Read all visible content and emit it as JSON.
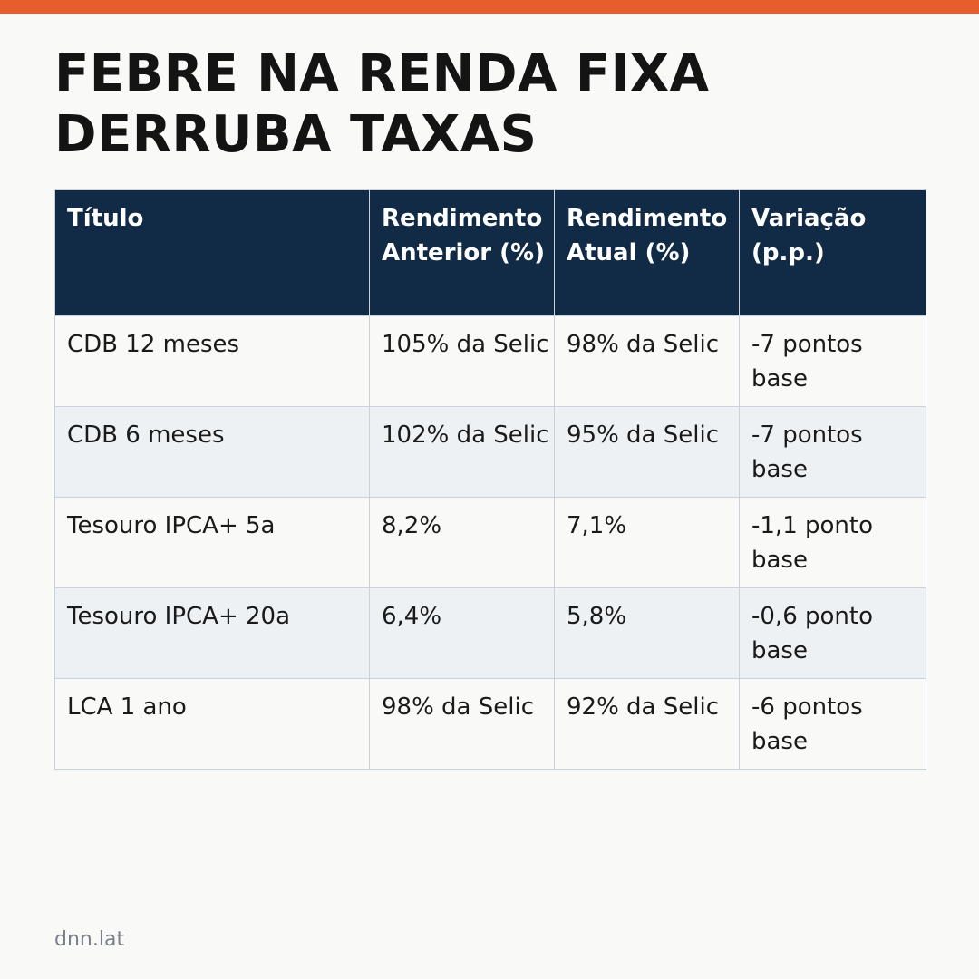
{
  "accent_color": "#e85d2e",
  "header_color": "#112a45",
  "headline": "FEBRE NA RENDA FIXA DERRUBA TAXAS",
  "table": {
    "headers": [
      "Título",
      "Rendimento Anterior (%)",
      "Rendimento Atual (%)",
      "Variação (p.p.)"
    ],
    "rows": [
      [
        "CDB 12 meses",
        "105% da Selic",
        "98% da Selic",
        "-7 pontos base"
      ],
      [
        "CDB 6 meses",
        "102% da Selic",
        "95% da Selic",
        "-7 pontos base"
      ],
      [
        "Tesouro IPCA+ 5a",
        "8,2%",
        "7,1%",
        "-1,1 ponto base"
      ],
      [
        "Tesouro IPCA+ 20a",
        "6,4%",
        "5,8%",
        "-0,6 ponto base"
      ],
      [
        "LCA 1 ano",
        "98% da Selic",
        "92% da Selic",
        "-6 pontos base"
      ]
    ]
  },
  "footer": "dnn.lat"
}
